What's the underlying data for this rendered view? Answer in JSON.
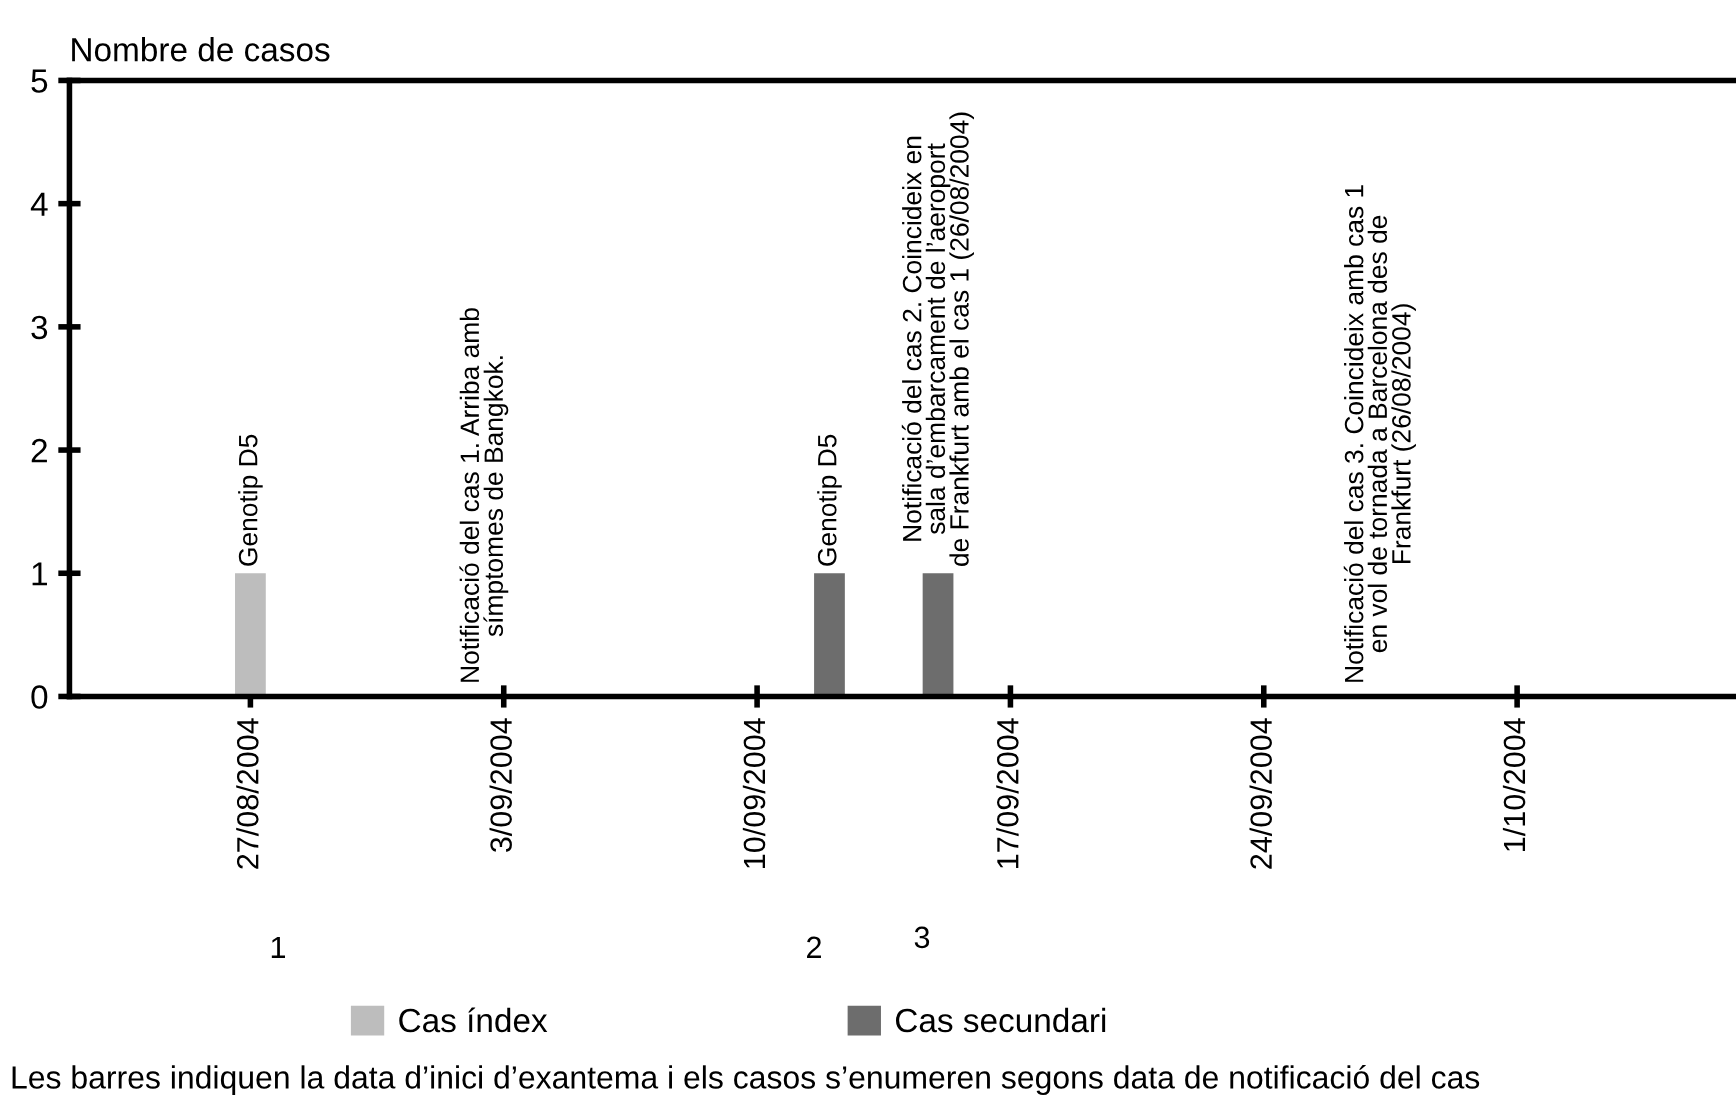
{
  "chart_data": {
    "type": "bar",
    "ylabel": "Nombre de casos",
    "series": [
      {
        "name": "Cas índex",
        "color": "#bdbdbd",
        "x": [
          "2004-08-27"
        ],
        "values": [
          1
        ]
      },
      {
        "name": "Cas secundari",
        "color": "#6d6d6d",
        "x": [
          "2004-09-12",
          "2004-09-15"
        ],
        "values": [
          1,
          1
        ]
      }
    ],
    "xlim": [
      "2004-08-22",
      "2004-10-07"
    ],
    "xticks": [
      {
        "value": "2004-08-27",
        "label": "27/08/2004"
      },
      {
        "value": "2004-09-03",
        "label": "3/09/2004"
      },
      {
        "value": "2004-09-10",
        "label": "10/09/2004"
      },
      {
        "value": "2004-09-17",
        "label": "17/09/2004"
      },
      {
        "value": "2004-09-24",
        "label": "24/09/2004"
      },
      {
        "value": "2004-10-01",
        "label": "1/10/2004"
      }
    ],
    "ylim": [
      0,
      5
    ],
    "yticks": [
      0,
      1,
      2,
      3,
      4,
      5
    ],
    "grid": false,
    "legend": "bottom",
    "annotations": [
      {
        "text": "Genotip D5",
        "x": "2004-08-27",
        "y": 1
      },
      "Notificació del cas 1. Arriba amb\nsímptomes de Bangkok.",
      {
        "text": "Genotip D5",
        "x": "2004-09-12",
        "y": 1
      },
      {
        "text": "Notificació del cas 2. Coincideix en\nsala d’embarcament de l’aeroport\nde Frankfurt amb el cas 1 (26/08/2004)",
        "x": "2004-09-15",
        "y": 1
      },
      "Notificació del cas 3. Coincideix amb cas 1\nen vol de tornada a Barcelona des de\nFrankfurt (26/08/2004)",
      "1",
      "2",
      "3",
      "Les barres indiquen la data d’inici d’exantema i els casos s’enumeren segons data de notificació del cas"
    ]
  }
}
